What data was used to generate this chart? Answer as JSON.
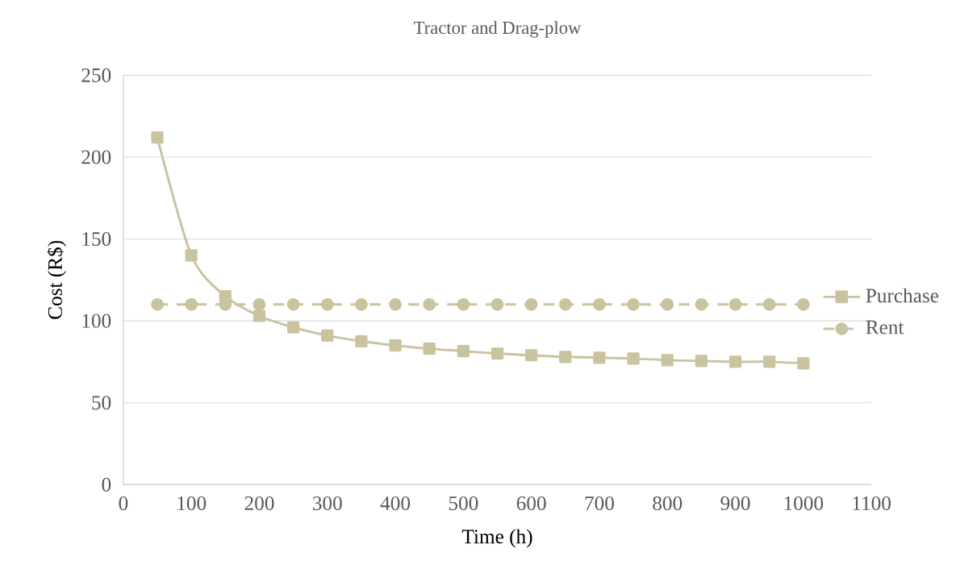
{
  "chart_data": {
    "type": "line",
    "title": "Tractor and Drag-plow",
    "xlabel": "Time (h)",
    "ylabel": "Cost (R$)",
    "x": [
      50,
      100,
      150,
      200,
      250,
      300,
      350,
      400,
      450,
      500,
      550,
      600,
      650,
      700,
      750,
      800,
      850,
      900,
      950,
      1000
    ],
    "series": [
      {
        "name": "Purchase",
        "color": "#c9c39f",
        "marker": "square",
        "line_style": "solid",
        "values": [
          212,
          140,
          115,
          103,
          96,
          91,
          87.5,
          85,
          83,
          81.5,
          80,
          79,
          78,
          77.5,
          77,
          76,
          75.5,
          75,
          75,
          74
        ]
      },
      {
        "name": "Rent",
        "color": "#c9c39f",
        "marker": "circle",
        "line_style": "dashed",
        "values": [
          110,
          110,
          110,
          110,
          110,
          110,
          110,
          110,
          110,
          110,
          110,
          110,
          110,
          110,
          110,
          110,
          110,
          110,
          110,
          110
        ]
      }
    ],
    "xlim": [
      0,
      1100
    ],
    "xticks": [
      0,
      100,
      200,
      300,
      400,
      500,
      600,
      700,
      800,
      900,
      1000,
      1100
    ],
    "ylim": [
      0,
      250
    ],
    "yticks": [
      0,
      50,
      100,
      150,
      200,
      250
    ],
    "grid": "y",
    "legend": "right"
  }
}
